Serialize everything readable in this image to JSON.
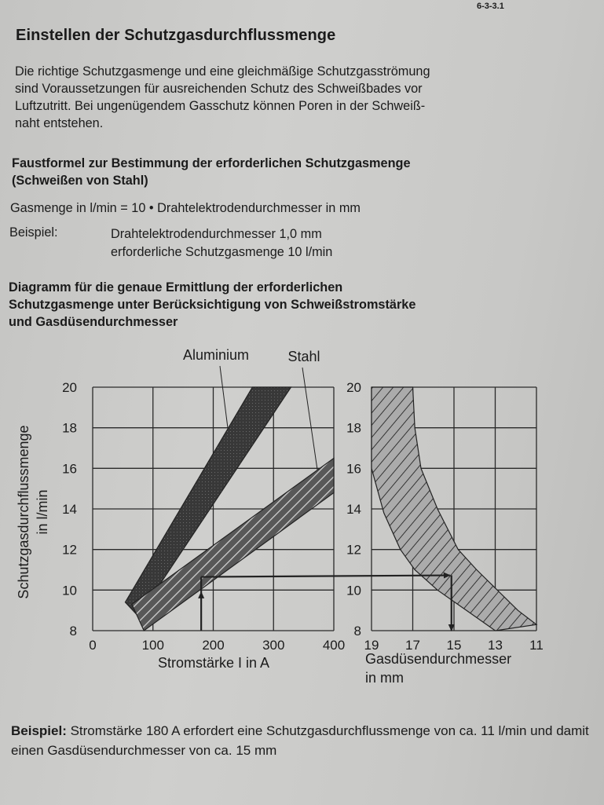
{
  "page_number": "6-3-3.1",
  "title": "Einstellen der Schutzgasdurchflussmenge",
  "intro_lines": [
    "Die richtige Schutzgasmenge und eine gleichmäßige Schutzgasströmung",
    "sind Voraussetzungen für ausreichenden Schutz des Schweißbades vor",
    "Luftzutritt. Bei ungenügendem Gasschutz können Poren in der Schweiß-",
    "naht entstehen."
  ],
  "rule_heading_lines": [
    "Faustformel zur Bestimmung der erforderlichen Schutzgasmenge",
    "(Schweißen von Stahl)"
  ],
  "formula": "Gasmenge in l/min = 10 • Drahtelektrodendurchmesser in mm",
  "example": {
    "label": "Beispiel:",
    "lines": [
      "Drahtelektrodendurchmesser 1,0 mm",
      "erforderliche Schutzgasmenge 10 l/min"
    ]
  },
  "diagram_heading_lines": [
    "Diagramm für die genaue Ermittlung der erforderlichen",
    "Schutzgasmenge unter Berücksichtigung von Schweißstromstärke",
    "und Gasdüsendurchmesser"
  ],
  "chart_data": {
    "type": "area",
    "ylabel": "Schutzgasdurchflussmenge",
    "ylabel_unit": "in l/min",
    "ylim": [
      8,
      20
    ],
    "yticks": [
      "20",
      "18",
      "16",
      "14",
      "12",
      "10",
      "8"
    ],
    "grid": true,
    "panels": [
      {
        "xlabel": "Stromstärke I in A",
        "xlim": [
          0,
          400
        ],
        "xticks": [
          "0",
          "100",
          "200",
          "300",
          "400"
        ],
        "bands": [
          {
            "name": "Aluminium",
            "color": "#3a3a3a",
            "polygon": [
              [
                54,
                9.4
              ],
              [
                265,
                20
              ],
              [
                329,
                20
              ],
              [
                76,
                8.7
              ]
            ]
          },
          {
            "name": "Stahl",
            "color": "#555555",
            "polygon": [
              [
                65,
                9.3
              ],
              [
                400,
                16.5
              ],
              [
                400,
                14.8
              ],
              [
                85,
                8
              ]
            ]
          }
        ]
      },
      {
        "xlabel": "Gasdüsendurchmesser",
        "xlabel_unit": "in mm",
        "xlim": [
          19,
          11
        ],
        "xticks": [
          "19",
          "17",
          "15",
          "13",
          "11"
        ],
        "bands": [
          {
            "color": "#a8a8a8",
            "polygon": [
              [
                19,
                20
              ],
              [
                19,
                16
              ],
              [
                18.4,
                13.8
              ],
              [
                17.6,
                12
              ],
              [
                16.9,
                11
              ],
              [
                15.8,
                10
              ],
              [
                14.4,
                9
              ],
              [
                13,
                8
              ],
              [
                11,
                8.3
              ],
              [
                11.9,
                9
              ],
              [
                12.9,
                10
              ],
              [
                13.9,
                11
              ],
              [
                14.8,
                12
              ],
              [
                15.8,
                14
              ],
              [
                16.6,
                16
              ],
              [
                16.9,
                18
              ],
              [
                17,
                20
              ]
            ]
          }
        ]
      }
    ],
    "example_path": {
      "current_A": 180,
      "flow_l_min": 10.65,
      "nozzle_mm": 15.2
    }
  },
  "bottom_example": {
    "label": "Beispiel:",
    "text": " Stromstärke 180 A erfordert eine Schutzgasdurchflussmenge von ca. 11 l/min und damit einen Gasdüsendurchmesser von ca. 15 mm"
  }
}
